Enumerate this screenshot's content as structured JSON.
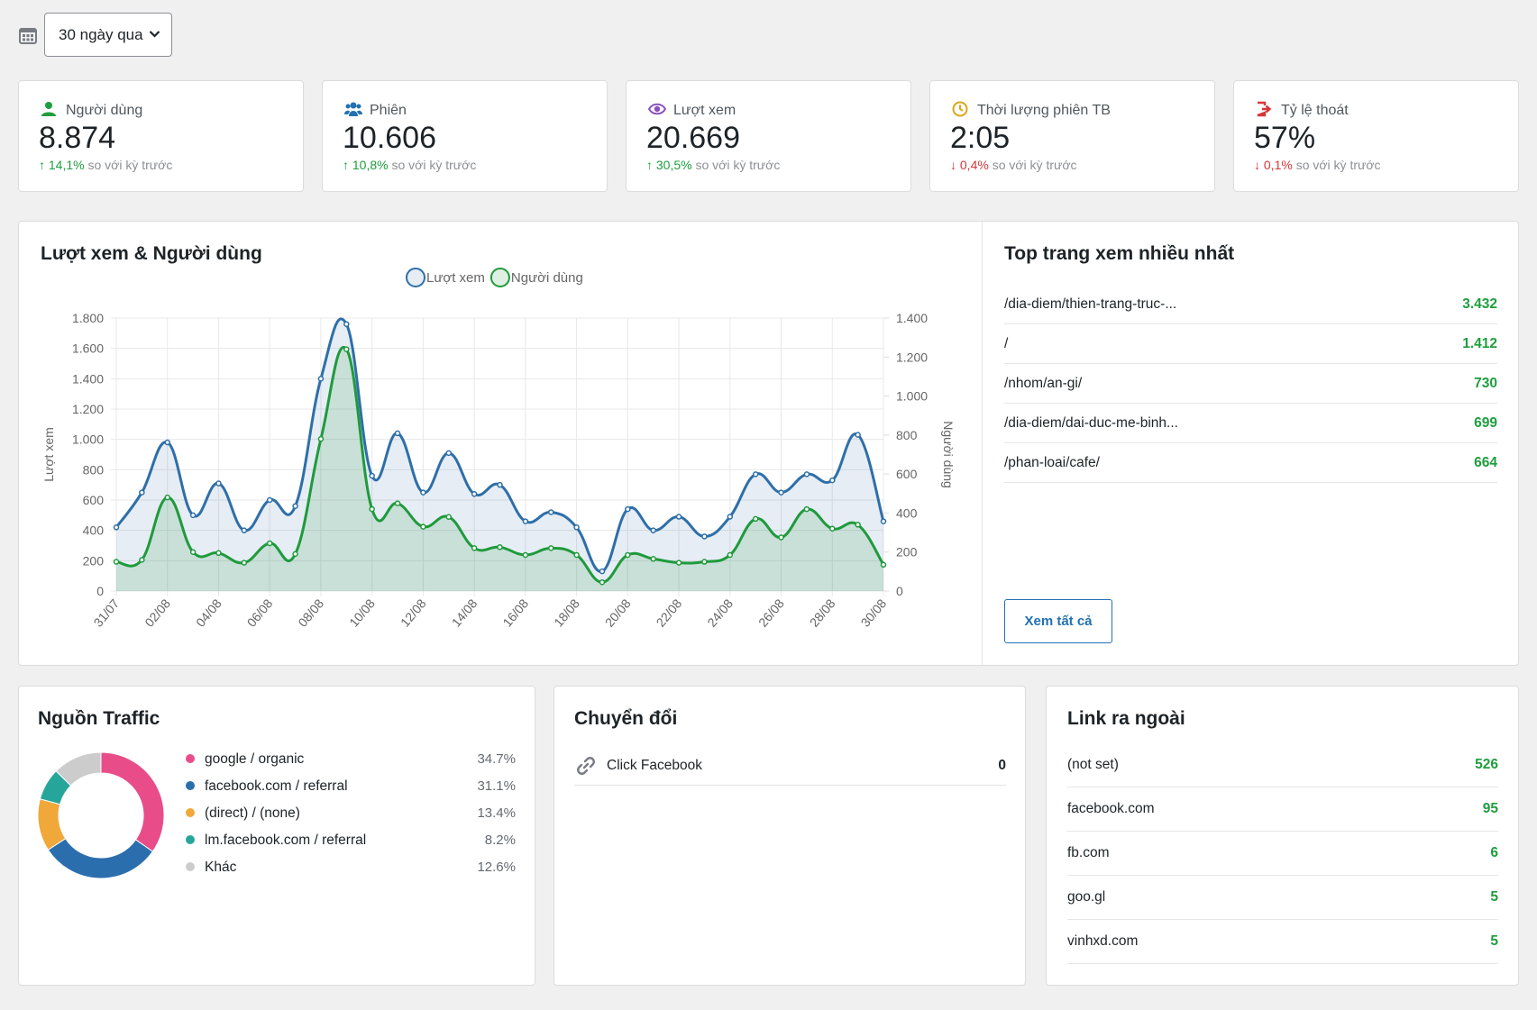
{
  "toolbar": {
    "range": "30 ngày qua"
  },
  "stats": [
    {
      "label": "Người dùng",
      "value": "8.874",
      "change": "↑ 14,1%",
      "note": "so với kỳ trước",
      "color": "#1e9e3e"
    },
    {
      "label": "Phiên",
      "value": "10.606",
      "change": "↑ 10,8%",
      "note": "so với kỳ trước",
      "color": "#1e9e3e"
    },
    {
      "label": "Lượt xem",
      "value": "20.669",
      "change": "↑ 30,5%",
      "note": "so với kỳ trước",
      "color": "#1e9e3e"
    },
    {
      "label": "Thời lượng phiên TB",
      "value": "2:05",
      "change": "↓ 0,4%",
      "note": "so với kỳ trước",
      "color": "#d63638"
    },
    {
      "label": "Tỷ lệ thoát",
      "value": "57%",
      "change": "↓ 0,1%",
      "note": "so với kỳ trước",
      "color": "#d63638"
    }
  ],
  "chart_data": [
    {
      "type": "line",
      "title": "Lượt xem & Người dùng",
      "y_label": "Lượt xem",
      "y2_label": "Người dùng",
      "legend": "top",
      "grid": true,
      "categories": [
        "31/07",
        null,
        "02/08",
        null,
        "04/08",
        null,
        "06/08",
        null,
        "08/08",
        null,
        "10/08",
        null,
        "12/08",
        null,
        "14/08",
        null,
        "16/08",
        null,
        "18/08",
        null,
        "20/08",
        null,
        "22/08",
        null,
        "24/08",
        null,
        "26/08",
        null,
        "28/08",
        null,
        "30/08"
      ],
      "series": [
        {
          "name": "Lượt xem",
          "color": "#2e6fa8",
          "values": [
            420,
            650,
            980,
            500,
            710,
            400,
            600,
            560,
            1400,
            1760,
            760,
            1040,
            650,
            910,
            640,
            700,
            460,
            520,
            420,
            130,
            540,
            400,
            490,
            360,
            490,
            770,
            650,
            770,
            730,
            1030,
            460
          ]
        },
        {
          "name": "Người dùng",
          "color": "#1f9a3c",
          "axis": "y2",
          "values": [
            150,
            160,
            480,
            200,
            195,
            145,
            245,
            190,
            780,
            1240,
            420,
            450,
            330,
            380,
            220,
            225,
            185,
            220,
            185,
            45,
            185,
            165,
            145,
            150,
            185,
            370,
            275,
            420,
            320,
            340,
            135
          ]
        }
      ],
      "ylim": [
        0,
        1800
      ],
      "yticks": [
        0,
        200,
        400,
        600,
        800,
        {
          "value": 1000,
          "label": "1.000"
        },
        {
          "value": 1200,
          "label": "1.200"
        },
        {
          "value": 1400,
          "label": "1.400"
        },
        {
          "value": 1600,
          "label": "1.600"
        },
        {
          "value": 1800,
          "label": "1.800"
        }
      ],
      "y2lim": [
        0,
        1400
      ],
      "y2ticks": [
        0,
        200,
        400,
        600,
        800,
        {
          "value": 1000,
          "label": "1.000"
        },
        {
          "value": 1200,
          "label": "1.200"
        },
        {
          "value": 1400,
          "label": "1.400"
        }
      ]
    },
    {
      "type": "pie",
      "title": "Nguồn Traffic",
      "categories": [
        "google / organic",
        "facebook.com / referral",
        "(direct) / (none)",
        "lm.facebook.com / referral",
        "Khác"
      ],
      "values": [
        34.7,
        31.1,
        13.4,
        8.2,
        12.6
      ],
      "value_labels": [
        "34.7%",
        "31.1%",
        "13.4%",
        "8.2%",
        "12.6%"
      ],
      "colors": [
        "#e84d8a",
        "#2a6ead",
        "#f0a83a",
        "#26a69a",
        "#cccccc"
      ]
    }
  ],
  "top_pages": {
    "title": "Top trang xem nhiều nhất",
    "rows": [
      [
        "/dia-diem/thien-trang-truc-...",
        "3.432"
      ],
      [
        "/",
        "1.412"
      ],
      [
        "/nhom/an-gi/",
        "730"
      ],
      [
        "/dia-diem/dai-duc-me-binh...",
        "699"
      ],
      [
        "/phan-loai/cafe/",
        "664"
      ]
    ],
    "button": "Xem tất cả"
  },
  "conversions": {
    "title": "Chuyển đổi",
    "rows": [
      [
        "Click Facebook",
        "0"
      ]
    ]
  },
  "outbound": {
    "title": "Link ra ngoài",
    "rows": [
      [
        "(not set)",
        "526"
      ],
      [
        "facebook.com",
        "95"
      ],
      [
        "fb.com",
        "6"
      ],
      [
        "goo.gl",
        "5"
      ],
      [
        "vinhxd.com",
        "5"
      ]
    ]
  }
}
